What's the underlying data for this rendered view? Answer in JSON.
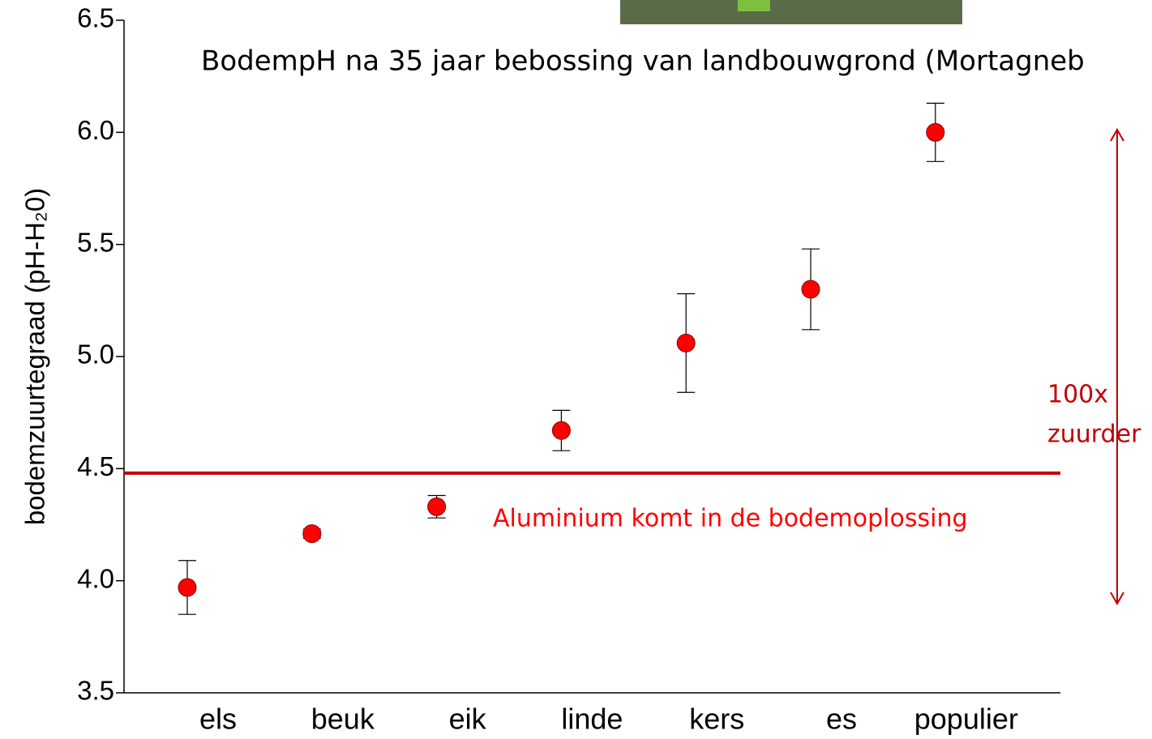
{
  "chart_data": {
    "type": "scatter",
    "title": "BodempH na 35 jaar bebossing van landbouwgrond (Mortagneb",
    "y_label": "bodemzuurtegraad (pH-H₂0)",
    "categories": [
      "els",
      "beuk",
      "eik",
      "linde",
      "kers",
      "es",
      "populier"
    ],
    "values": [
      3.97,
      4.21,
      4.33,
      4.67,
      5.06,
      5.3,
      6.0
    ],
    "errors": [
      0.12,
      0.02,
      0.05,
      0.09,
      0.22,
      0.18,
      0.13
    ],
    "color": "#ff0000",
    "ylim": [
      3.5,
      6.5
    ],
    "yticks": [
      3.5,
      {
        "value": 4.0,
        "label": "4.0"
      },
      4.5,
      {
        "value": 5.0,
        "label": "5.0"
      },
      5.5,
      {
        "value": 6.0,
        "label": "6.0"
      },
      6.5
    ],
    "hline": {
      "value": 4.48,
      "label": "Aluminium komt in de bodemoplossing",
      "color": "#c00000"
    },
    "annotations": [
      "100x",
      "zuurder"
    ]
  }
}
